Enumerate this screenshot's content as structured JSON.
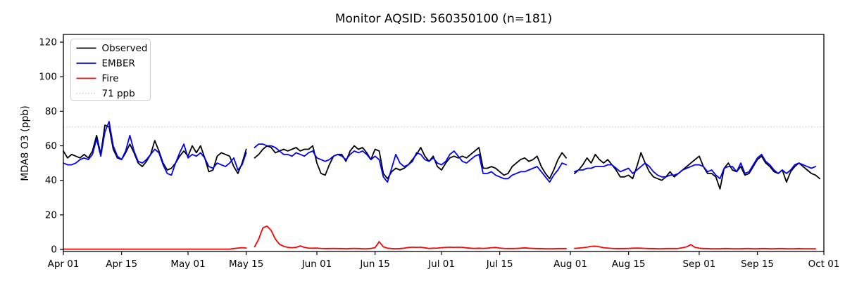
{
  "chart_data": {
    "type": "line",
    "title": "Monitor AQSID: 560350100 (n=181)",
    "ylabel": "MDA8 O3 (ppb)",
    "xlabel": "",
    "grid": false,
    "legend_position": "upper left",
    "ylim": [
      -1.2,
      124.5
    ],
    "xlim_days": [
      0,
      183
    ],
    "yticks": [
      0,
      20,
      40,
      60,
      80,
      100,
      120
    ],
    "xticks": [
      {
        "day": 0,
        "label": "Apr 01"
      },
      {
        "day": 14,
        "label": "Apr 15"
      },
      {
        "day": 30,
        "label": "May 01"
      },
      {
        "day": 44,
        "label": "May 15"
      },
      {
        "day": 61,
        "label": "Jun 01"
      },
      {
        "day": 75,
        "label": "Jun 15"
      },
      {
        "day": 91,
        "label": "Jul 01"
      },
      {
        "day": 105,
        "label": "Jul 15"
      },
      {
        "day": 122,
        "label": "Aug 01"
      },
      {
        "day": 136,
        "label": "Aug 15"
      },
      {
        "day": 153,
        "label": "Sep 01"
      },
      {
        "day": 167,
        "label": "Sep 15"
      },
      {
        "day": 183,
        "label": "Oct 01"
      }
    ],
    "threshold": {
      "value": 71,
      "label": "71 ppb",
      "color": "#d3d3d3",
      "style": "dotted"
    },
    "legend": [
      {
        "label": "Observed",
        "color": "#000000",
        "dash": "solid"
      },
      {
        "label": "EMBER",
        "color": "#0000ff",
        "dash": "solid"
      },
      {
        "label": "Fire",
        "color": "#ff0000",
        "dash": "solid"
      },
      {
        "label": "71 ppb",
        "color": "#d3d3d3",
        "dash": "dotted"
      }
    ],
    "x_start": "Apr 01",
    "missing_days": [
      "May 16",
      "Aug 01"
    ],
    "n_points": 181,
    "series": [
      {
        "name": "Observed",
        "color": "#000000",
        "values": [
          57,
          53,
          55,
          54,
          53,
          55,
          53,
          57,
          66,
          55,
          72,
          71,
          58,
          53,
          52,
          56,
          61,
          56,
          50,
          48,
          51,
          55,
          63,
          57,
          50,
          46,
          47,
          50,
          54,
          57,
          54,
          60,
          56,
          60,
          53,
          45,
          46,
          54,
          56,
          55,
          54,
          48,
          44,
          50,
          58,
          null,
          53,
          55,
          58,
          60,
          59,
          56,
          57,
          58,
          57,
          58,
          59,
          57,
          58,
          58,
          60,
          50,
          44,
          43,
          49,
          54,
          55,
          55,
          51,
          57,
          60,
          58,
          59,
          56,
          52,
          58,
          57,
          44,
          41,
          45,
          47,
          46,
          47,
          49,
          52,
          55,
          59,
          54,
          51,
          54,
          48,
          46,
          50,
          53,
          54,
          53,
          54,
          53,
          55,
          57,
          59,
          47,
          47,
          48,
          47,
          45,
          43,
          44,
          48,
          50,
          52,
          53,
          51,
          52,
          54,
          48,
          44,
          41,
          46,
          52,
          56,
          53,
          null,
          44,
          46,
          49,
          53,
          50,
          55,
          52,
          50,
          52,
          49,
          46,
          42,
          42,
          43,
          41,
          48,
          56,
          50,
          45,
          42,
          41,
          40,
          42,
          45,
          42,
          44,
          46,
          48,
          50,
          52,
          54,
          48,
          44,
          44,
          42,
          35,
          47,
          50,
          46,
          45,
          48,
          43,
          44,
          48,
          52,
          54,
          50,
          48,
          45,
          44,
          46,
          39,
          45,
          48,
          50,
          48,
          46,
          44,
          43,
          41
        ]
      },
      {
        "name": "EMBER",
        "color": "#0000ff",
        "values": [
          50,
          49,
          49,
          50,
          52,
          53,
          52,
          55,
          64,
          54,
          68,
          74,
          60,
          54,
          52,
          57,
          66,
          57,
          51,
          50,
          52,
          55,
          58,
          56,
          49,
          44,
          43,
          50,
          56,
          61,
          53,
          55,
          54,
          56,
          53,
          48,
          47,
          50,
          49,
          48,
          50,
          53,
          46,
          49,
          56,
          null,
          59,
          61,
          61,
          60,
          60,
          59,
          57,
          55,
          55,
          54,
          56,
          55,
          54,
          56,
          57,
          53,
          52,
          51,
          52,
          54,
          55,
          54,
          52,
          55,
          57,
          56,
          57,
          55,
          52,
          54,
          52,
          42,
          39,
          47,
          55,
          50,
          48,
          49,
          51,
          56,
          55,
          52,
          51,
          53,
          50,
          49,
          51,
          55,
          57,
          54,
          51,
          50,
          52,
          54,
          55,
          44,
          44,
          45,
          43,
          42,
          41,
          41,
          43,
          44,
          45,
          45,
          46,
          47,
          48,
          45,
          42,
          39,
          43,
          46,
          50,
          49,
          null,
          45,
          46,
          46,
          47,
          47,
          48,
          48,
          48,
          49,
          49,
          47,
          45,
          46,
          47,
          44,
          46,
          48,
          50,
          48,
          45,
          43,
          42,
          42,
          43,
          43,
          44,
          46,
          47,
          48,
          49,
          49,
          48,
          45,
          46,
          43,
          41,
          47,
          48,
          48,
          45,
          50,
          44,
          45,
          49,
          53,
          55,
          51,
          49,
          46,
          44,
          46,
          44,
          46,
          49,
          50,
          49,
          48,
          47,
          48,
          null
        ]
      },
      {
        "name": "Fire",
        "color": "#ff0000",
        "values": [
          0.2,
          0.2,
          0.2,
          0.2,
          0.2,
          0.2,
          0.2,
          0.2,
          0.2,
          0.2,
          0.2,
          0.2,
          0.2,
          0.2,
          0.2,
          0.2,
          0.2,
          0.2,
          0.2,
          0.2,
          0.2,
          0.2,
          0.2,
          0.2,
          0.2,
          0.2,
          0.2,
          0.2,
          0.2,
          0.2,
          0.2,
          0.2,
          0.2,
          0.2,
          0.2,
          0.2,
          0.2,
          0.2,
          0.2,
          0.2,
          0.2,
          0.5,
          0.8,
          1.0,
          0.8,
          null,
          1.5,
          6,
          12.5,
          13.5,
          11,
          6,
          3,
          1.8,
          1.2,
          1.0,
          1.2,
          2.0,
          1.2,
          0.8,
          0.7,
          0.8,
          0.6,
          0.5,
          0.5,
          0.6,
          0.5,
          0.5,
          0.4,
          0.5,
          0.6,
          0.5,
          0.4,
          0.4,
          0.6,
          1.0,
          4.5,
          1.5,
          0.7,
          0.5,
          0.4,
          0.5,
          0.7,
          1.1,
          1.3,
          1.2,
          1.3,
          0.9,
          0.6,
          0.7,
          0.8,
          1.0,
          1.2,
          1.3,
          1.2,
          1.3,
          1.2,
          0.9,
          0.7,
          0.6,
          0.7,
          0.6,
          0.7,
          1.0,
          1.1,
          0.8,
          0.6,
          0.5,
          0.5,
          0.6,
          0.7,
          0.9,
          0.7,
          0.6,
          0.5,
          0.5,
          0.4,
          0.4,
          0.4,
          0.5,
          0.5,
          0.5,
          null,
          0.6,
          0.8,
          1.0,
          1.3,
          1.8,
          1.9,
          1.5,
          1.0,
          0.8,
          0.6,
          0.5,
          0.5,
          0.5,
          0.6,
          0.7,
          0.8,
          0.7,
          0.6,
          0.5,
          0.5,
          0.4,
          0.4,
          0.5,
          0.5,
          0.5,
          0.6,
          1.0,
          1.5,
          2.8,
          1.2,
          0.7,
          0.5,
          0.5,
          0.4,
          0.4,
          0.4,
          0.5,
          0.5,
          0.4,
          0.4,
          0.4,
          0.5,
          0.5,
          0.4,
          0.4,
          0.5,
          0.5,
          0.4,
          0.4,
          0.5,
          0.5,
          0.4,
          0.4,
          0.4,
          0.5,
          0.4,
          0.4,
          0.4,
          0.4,
          null
        ]
      }
    ]
  }
}
